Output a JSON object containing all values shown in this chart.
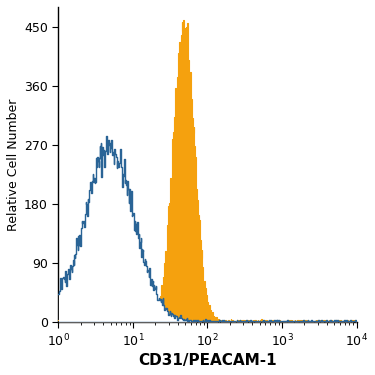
{
  "xlabel": "CD31/PEACAM-1",
  "ylabel": "Relative Cell Number",
  "xlim_log": [
    0,
    4
  ],
  "ylim": [
    0,
    480
  ],
  "yticks": [
    0,
    90,
    180,
    270,
    360,
    450
  ],
  "background_color": "#ffffff",
  "isotype_color": "#2a6496",
  "filled_color": "#f5a10e",
  "isotype_peak_log": 0.68,
  "isotype_peak_y": 265,
  "isotype_sigma": 0.33,
  "filled_peak_log": 1.68,
  "filled_peak_y": 450,
  "filled_sigma": 0.14,
  "xlabel_fontsize": 11,
  "ylabel_fontsize": 9,
  "tick_fontsize": 9
}
